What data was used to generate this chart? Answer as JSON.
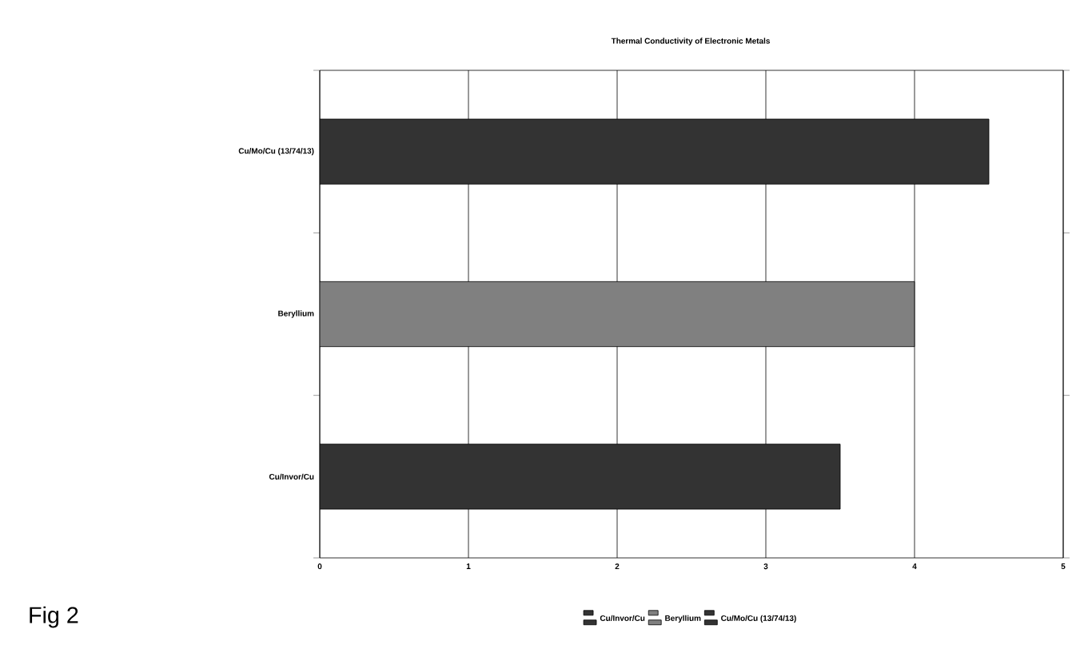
{
  "chart_data": {
    "type": "bar",
    "orientation": "horizontal",
    "title": "Thermal Conductivity of Electronic Metals",
    "categories": [
      "Cu/Mo/Cu (13/74/13)",
      "Beryllium",
      "Cu/Invor/Cu"
    ],
    "series": [
      {
        "name": "Cu/Invor/Cu",
        "color": "#333333",
        "values": [
          null,
          null,
          3.5
        ]
      },
      {
        "name": "Beryllium",
        "color": "#808080",
        "values": [
          null,
          4,
          null
        ]
      },
      {
        "name": "Cu/Mo/Cu (13/74/13)",
        "color": "#333333",
        "values": [
          4.5,
          null,
          null
        ]
      }
    ],
    "xlim": [
      0,
      5
    ],
    "xticks": [
      0,
      1,
      2,
      3,
      4,
      5
    ],
    "grid": "x",
    "legend": "bottom",
    "annotations": [
      "Fig 2"
    ]
  }
}
